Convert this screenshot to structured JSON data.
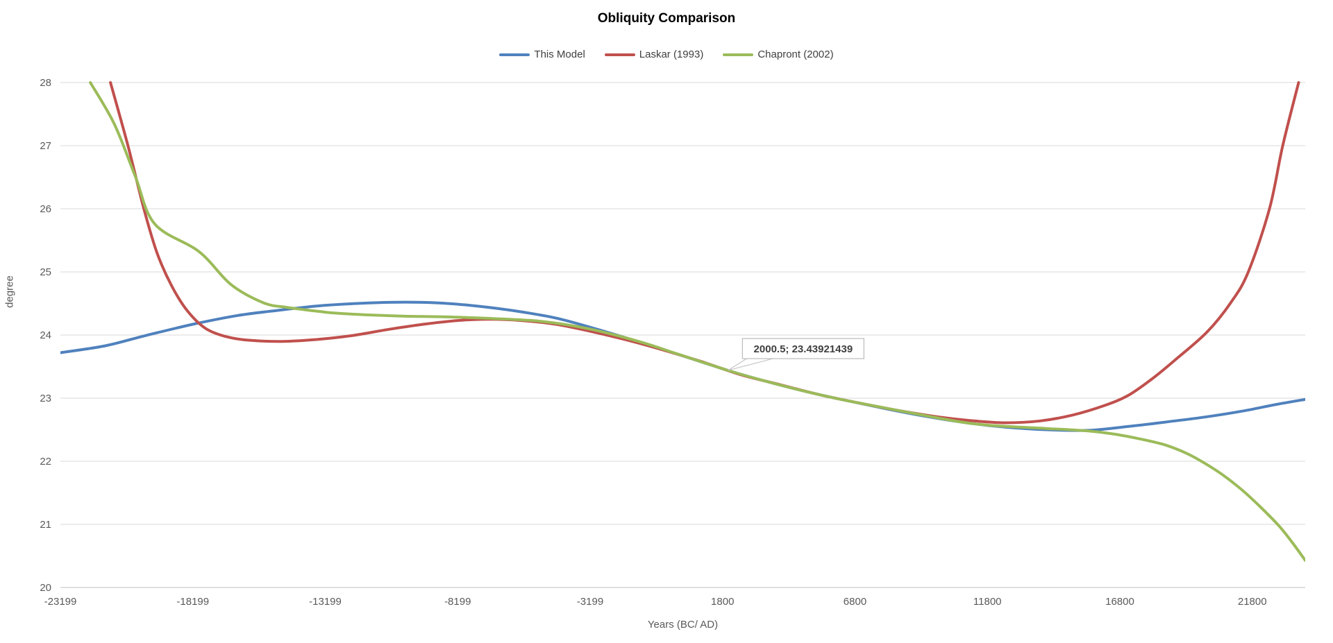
{
  "title": "Obliquity Comparison",
  "colors": {
    "grid": "#d9d9d9",
    "axis_line": "#bfbfbf",
    "tick_text": "#595959",
    "title_text": "#000000",
    "legend_text": "#3f3f3f",
    "annotation_border": "#bfbfbf",
    "annotation_fill": "#ffffff",
    "annotation_text": "#404040",
    "background": "#ffffff"
  },
  "chart_data": {
    "type": "line",
    "title": "Obliquity Comparison",
    "xlabel": "Years (BC/ AD)",
    "ylabel": "degree",
    "xlim": [
      -23200,
      23800
    ],
    "ylim": [
      20,
      28
    ],
    "grid": true,
    "legend_position": "top-center",
    "y_ticks": [
      20,
      21,
      22,
      23,
      24,
      25,
      26,
      27,
      28
    ],
    "x_ticks": [
      {
        "label": "-23199",
        "value": -23199.5
      },
      {
        "label": "-18199",
        "value": -18199.5
      },
      {
        "label": "-13199",
        "value": -13199.5
      },
      {
        "label": "-8199",
        "value": -8199.5
      },
      {
        "label": "-3199",
        "value": -3199.5
      },
      {
        "label": "1800",
        "value": 1800.5
      },
      {
        "label": "6800",
        "value": 6800.5
      },
      {
        "label": "11800",
        "value": 11800.5
      },
      {
        "label": "16800",
        "value": 16800.5
      },
      {
        "label": "21800",
        "value": 21800.5
      }
    ],
    "annotation": {
      "label": "2000.5; 23.43921439",
      "x": 2000.5,
      "y": 23.43921439
    },
    "series": [
      {
        "name": "This Model",
        "color": "#4F81BD",
        "points": [
          [
            -23200,
            23.72
          ],
          [
            -21500,
            23.83
          ],
          [
            -20000,
            23.99
          ],
          [
            -18200,
            24.17
          ],
          [
            -16500,
            24.31
          ],
          [
            -15000,
            24.39
          ],
          [
            -13500,
            24.46
          ],
          [
            -12000,
            24.5
          ],
          [
            -10500,
            24.52
          ],
          [
            -9000,
            24.51
          ],
          [
            -7500,
            24.46
          ],
          [
            -6000,
            24.38
          ],
          [
            -4500,
            24.27
          ],
          [
            -3000,
            24.1
          ],
          [
            -1500,
            23.91
          ],
          [
            0,
            23.71
          ],
          [
            2000,
            23.44
          ],
          [
            3500,
            23.26
          ],
          [
            5000,
            23.1
          ],
          [
            6500,
            22.96
          ],
          [
            8000,
            22.83
          ],
          [
            9500,
            22.71
          ],
          [
            11000,
            22.61
          ],
          [
            12500,
            22.54
          ],
          [
            14000,
            22.5
          ],
          [
            15600,
            22.49
          ],
          [
            17100,
            22.55
          ],
          [
            18500,
            22.62
          ],
          [
            20000,
            22.7
          ],
          [
            21500,
            22.8
          ],
          [
            22700,
            22.9
          ],
          [
            23800,
            22.98
          ]
        ]
      },
      {
        "name": "Laskar (1993)",
        "color": "#C0504D",
        "points": [
          [
            -21310,
            28.0
          ],
          [
            -20650,
            27.0
          ],
          [
            -20050,
            26.0
          ],
          [
            -19550,
            25.3
          ],
          [
            -19000,
            24.78
          ],
          [
            -18400,
            24.38
          ],
          [
            -17700,
            24.1
          ],
          [
            -16800,
            23.96
          ],
          [
            -15800,
            23.91
          ],
          [
            -14700,
            23.9
          ],
          [
            -13500,
            23.93
          ],
          [
            -12200,
            23.99
          ],
          [
            -10800,
            24.09
          ],
          [
            -9500,
            24.17
          ],
          [
            -8200,
            24.23
          ],
          [
            -7000,
            24.25
          ],
          [
            -5800,
            24.23
          ],
          [
            -4500,
            24.17
          ],
          [
            -3200,
            24.06
          ],
          [
            -1800,
            23.92
          ],
          [
            -500,
            23.77
          ],
          [
            1000,
            23.58
          ],
          [
            2500,
            23.37
          ],
          [
            4000,
            23.21
          ],
          [
            5500,
            23.05
          ],
          [
            7000,
            22.92
          ],
          [
            8500,
            22.8
          ],
          [
            10000,
            22.7
          ],
          [
            11300,
            22.64
          ],
          [
            12500,
            22.61
          ],
          [
            13800,
            22.64
          ],
          [
            15000,
            22.73
          ],
          [
            16200,
            22.88
          ],
          [
            17100,
            23.04
          ],
          [
            18000,
            23.3
          ],
          [
            18900,
            23.61
          ],
          [
            20100,
            24.05
          ],
          [
            21000,
            24.52
          ],
          [
            21650,
            25.0
          ],
          [
            22450,
            26.0
          ],
          [
            22950,
            27.0
          ],
          [
            23550,
            28.0
          ]
        ]
      },
      {
        "name": "Chapront (2002)",
        "color": "#9BBB59",
        "points": [
          [
            -22070,
            28.0
          ],
          [
            -21160,
            27.34
          ],
          [
            -20370,
            26.51
          ],
          [
            -19640,
            25.76
          ],
          [
            -17960,
            25.32
          ],
          [
            -16760,
            24.8
          ],
          [
            -15530,
            24.51
          ],
          [
            -14670,
            24.44
          ],
          [
            -13960,
            24.4
          ],
          [
            -13360,
            24.37
          ],
          [
            -12900,
            24.35
          ],
          [
            -11670,
            24.32
          ],
          [
            -10280,
            24.3
          ],
          [
            -8870,
            24.29
          ],
          [
            -7380,
            24.27
          ],
          [
            -5120,
            24.22
          ],
          [
            -3260,
            24.1
          ],
          [
            -1380,
            23.9
          ],
          [
            100,
            23.7
          ],
          [
            2000.5,
            23.44
          ],
          [
            3500,
            23.26
          ],
          [
            5000,
            23.1
          ],
          [
            6500,
            22.96
          ],
          [
            8000,
            22.84
          ],
          [
            9500,
            22.72
          ],
          [
            11000,
            22.61
          ],
          [
            12200,
            22.56
          ],
          [
            14000,
            22.52
          ],
          [
            15600,
            22.48
          ],
          [
            16600,
            22.43
          ],
          [
            17600,
            22.35
          ],
          [
            18500,
            22.26
          ],
          [
            19300,
            22.13
          ],
          [
            20000,
            21.97
          ],
          [
            20700,
            21.78
          ],
          [
            21400,
            21.55
          ],
          [
            22100,
            21.28
          ],
          [
            22800,
            20.98
          ],
          [
            23300,
            20.72
          ],
          [
            23800,
            20.43
          ]
        ]
      }
    ]
  }
}
